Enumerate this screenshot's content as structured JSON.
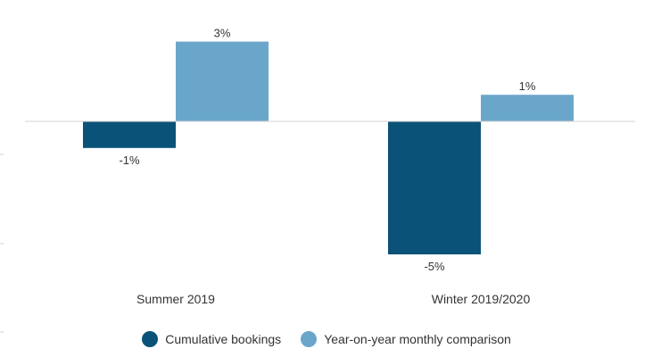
{
  "chart_data": {
    "type": "bar",
    "categories": [
      "Summer 2019",
      "Winter 2019/2020"
    ],
    "series": [
      {
        "name": "Cumulative bookings",
        "values": [
          -1,
          -5
        ],
        "labels": [
          "-1%",
          "-5%"
        ],
        "color": "#0b5279"
      },
      {
        "name": "Year-on-year monthly comparison",
        "values": [
          3,
          1
        ],
        "labels": [
          "3%",
          "1%"
        ],
        "color": "#6aa6c9"
      }
    ],
    "title": "",
    "xlabel": "",
    "ylabel": "",
    "ylim": [
      -6,
      4
    ],
    "grid": false,
    "legend_position": "bottom"
  }
}
